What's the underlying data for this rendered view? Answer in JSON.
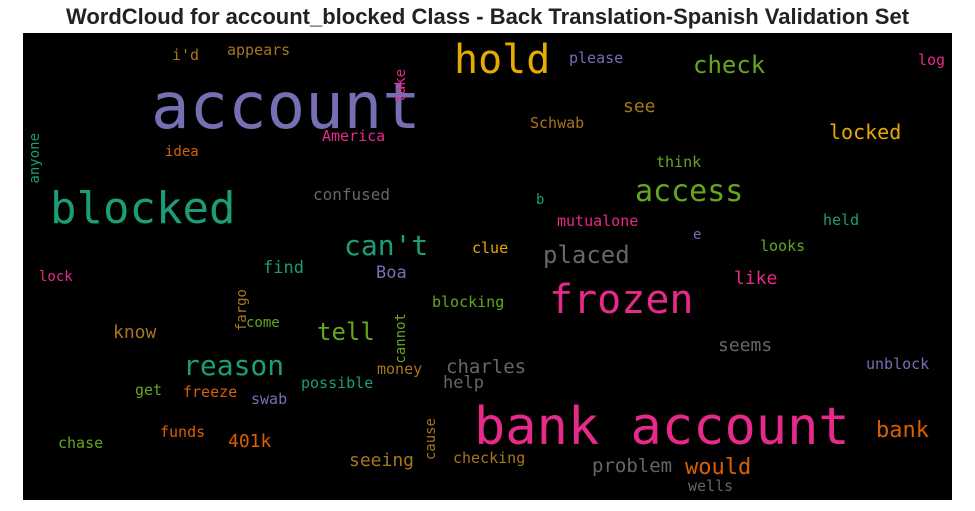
{
  "title": "WordCloud for account_blocked Class - Back Translation-Spanish Validation Set",
  "chart_data": {
    "type": "wordcloud",
    "title": "WordCloud for account_blocked Class - Back Translation-Spanish Validation Set",
    "background": "#000000",
    "words": [
      {
        "text": "account",
        "weight": 1.0,
        "color": "#7570b3"
      },
      {
        "text": "bank account",
        "weight": 0.86,
        "color": "#e7298a"
      },
      {
        "text": "blocked",
        "weight": 0.74,
        "color": "#1b9e77"
      },
      {
        "text": "hold",
        "weight": 0.66,
        "color": "#e6ab02"
      },
      {
        "text": "frozen",
        "weight": 0.64,
        "color": "#e7298a"
      },
      {
        "text": "access",
        "weight": 0.48,
        "color": "#66a61e"
      },
      {
        "text": "can't",
        "weight": 0.42,
        "color": "#1b9e77"
      },
      {
        "text": "reason",
        "weight": 0.42,
        "color": "#1b9e77"
      },
      {
        "text": "placed",
        "weight": 0.38,
        "color": "#666666"
      },
      {
        "text": "check",
        "weight": 0.36,
        "color": "#66a61e"
      },
      {
        "text": "tell",
        "weight": 0.36,
        "color": "#66a61e"
      },
      {
        "text": "bank",
        "weight": 0.34,
        "color": "#d95f02"
      },
      {
        "text": "would",
        "weight": 0.34,
        "color": "#d95f02"
      },
      {
        "text": "locked",
        "weight": 0.3,
        "color": "#e6ab02"
      },
      {
        "text": "charles",
        "weight": 0.3,
        "color": "#666666"
      },
      {
        "text": "problem",
        "weight": 0.3,
        "color": "#666666"
      },
      {
        "text": "seems",
        "weight": 0.28,
        "color": "#666666"
      },
      {
        "text": "know",
        "weight": 0.28,
        "color": "#a6761d"
      },
      {
        "text": "seeing",
        "weight": 0.28,
        "color": "#a6761d"
      },
      {
        "text": "like",
        "weight": 0.28,
        "color": "#e7298a"
      },
      {
        "text": "see",
        "weight": 0.27,
        "color": "#a6761d"
      },
      {
        "text": "401k",
        "weight": 0.27,
        "color": "#d95f02"
      },
      {
        "text": "Boa",
        "weight": 0.25,
        "color": "#7570b3"
      },
      {
        "text": "find",
        "weight": 0.25,
        "color": "#1b9e77"
      },
      {
        "text": "help",
        "weight": 0.25,
        "color": "#666666"
      },
      {
        "text": "confused",
        "weight": 0.23,
        "color": "#666666"
      },
      {
        "text": "mutualone",
        "weight": 0.22,
        "color": "#e7298a"
      },
      {
        "text": "unblock",
        "weight": 0.22,
        "color": "#7570b3"
      },
      {
        "text": "please",
        "weight": 0.22,
        "color": "#7570b3"
      },
      {
        "text": "appears",
        "weight": 0.22,
        "color": "#a6761d"
      },
      {
        "text": "America",
        "weight": 0.22,
        "color": "#e7298a"
      },
      {
        "text": "Schwab",
        "weight": 0.22,
        "color": "#a6761d"
      },
      {
        "text": "think",
        "weight": 0.22,
        "color": "#66a61e"
      },
      {
        "text": "held",
        "weight": 0.22,
        "color": "#1b9e77"
      },
      {
        "text": "looks",
        "weight": 0.22,
        "color": "#66a61e"
      },
      {
        "text": "clue",
        "weight": 0.22,
        "color": "#e6ab02"
      },
      {
        "text": "blocking",
        "weight": 0.22,
        "color": "#66a61e"
      },
      {
        "text": "money",
        "weight": 0.22,
        "color": "#a6761d"
      },
      {
        "text": "possible",
        "weight": 0.22,
        "color": "#1b9e77"
      },
      {
        "text": "checking",
        "weight": 0.22,
        "color": "#a6761d"
      },
      {
        "text": "wells",
        "weight": 0.22,
        "color": "#666666"
      },
      {
        "text": "freeze",
        "weight": 0.22,
        "color": "#d95f02"
      },
      {
        "text": "swab",
        "weight": 0.22,
        "color": "#7570b3"
      },
      {
        "text": "funds",
        "weight": 0.22,
        "color": "#d95f02"
      },
      {
        "text": "chase",
        "weight": 0.22,
        "color": "#66a61e"
      },
      {
        "text": "get",
        "weight": 0.22,
        "color": "#66a61e"
      },
      {
        "text": "come",
        "weight": 0.21,
        "color": "#66a61e"
      },
      {
        "text": "lock",
        "weight": 0.21,
        "color": "#e7298a"
      },
      {
        "text": "idea",
        "weight": 0.21,
        "color": "#d95f02"
      },
      {
        "text": "i'd",
        "weight": 0.21,
        "color": "#a6761d"
      },
      {
        "text": "log",
        "weight": 0.21,
        "color": "#e7298a"
      },
      {
        "text": "anyone",
        "weight": 0.21,
        "color": "#1b9e77"
      },
      {
        "text": "take",
        "weight": 0.21,
        "color": "#e7298a"
      },
      {
        "text": "fargo",
        "weight": 0.21,
        "color": "#a6761d"
      },
      {
        "text": "cannot",
        "weight": 0.21,
        "color": "#66a61e"
      },
      {
        "text": "cause",
        "weight": 0.21,
        "color": "#a6761d"
      },
      {
        "text": "b",
        "weight": 0.2,
        "color": "#1b9e77"
      },
      {
        "text": "e",
        "weight": 0.2,
        "color": "#7570b3"
      }
    ]
  }
}
